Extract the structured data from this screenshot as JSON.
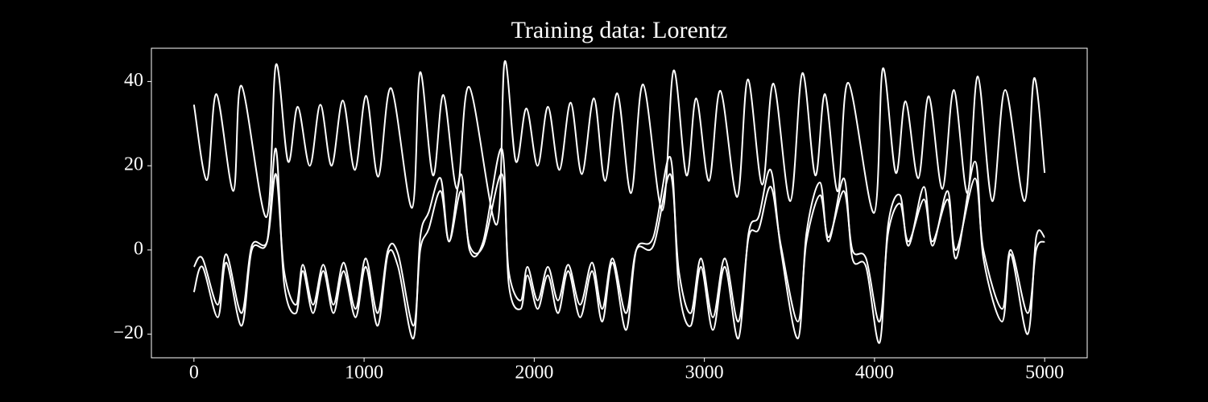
{
  "chart_data": {
    "type": "line",
    "title": "Training data: Lorentz",
    "xlim": [
      -250,
      5250
    ],
    "ylim": [
      -25.6,
      47.9
    ],
    "xticks": [
      0,
      1000,
      2000,
      3000,
      4000,
      5000
    ],
    "yticks": [
      {
        "value": -20,
        "label": "−20"
      },
      0,
      20,
      40
    ],
    "grid": false,
    "series": [
      {
        "color": "#ffffff",
        "x": [
          0,
          50,
          140,
          190,
          280,
          340,
          430,
          482,
          530,
          600,
          640,
          700,
          760,
          820,
          880,
          950,
          1010,
          1080,
          1140,
          1200,
          1290,
          1330,
          1380,
          1450,
          1500,
          1570,
          1620,
          1700,
          1810,
          1850,
          1920,
          1960,
          2020,
          2080,
          2140,
          2200,
          2270,
          2340,
          2400,
          2460,
          2540,
          2600,
          2700,
          2800,
          2850,
          2920,
          2980,
          3050,
          3120,
          3200,
          3260,
          3320,
          3390,
          3450,
          3550,
          3600,
          3680,
          3730,
          3820,
          3870,
          3950,
          4030,
          4080,
          4150,
          4200,
          4290,
          4340,
          4430,
          4480,
          4590,
          4640,
          4750,
          4800,
          4900,
          4950,
          5000
        ],
        "values": [
          -4,
          -2,
          -13,
          -1,
          -15,
          1,
          2,
          18,
          -5,
          -13,
          -3.5,
          -13,
          -3.5,
          -13,
          -3,
          -14,
          -2,
          -15,
          0,
          -1,
          -18,
          0,
          5,
          14,
          2,
          14,
          1,
          1,
          18,
          -5,
          -12,
          -4,
          -12,
          -4,
          -12,
          -3.5,
          -13,
          -3,
          -14,
          -2,
          -15,
          0,
          1,
          18,
          -5,
          -15,
          -2,
          -16,
          -2,
          -17,
          3,
          5,
          15,
          1,
          -17,
          2,
          13,
          3,
          14,
          0,
          -2,
          -17,
          4,
          11,
          2,
          12,
          2,
          12,
          0,
          17,
          0,
          -14,
          0,
          -15,
          0,
          2
        ]
      },
      {
        "color": "#ffffff",
        "x": [
          0,
          50,
          140,
          190,
          280,
          340,
          430,
          482,
          530,
          600,
          640,
          700,
          760,
          820,
          880,
          950,
          1010,
          1080,
          1140,
          1200,
          1290,
          1330,
          1380,
          1450,
          1500,
          1570,
          1620,
          1700,
          1810,
          1850,
          1920,
          1960,
          2020,
          2080,
          2140,
          2200,
          2270,
          2340,
          2400,
          2460,
          2540,
          2600,
          2700,
          2800,
          2850,
          2920,
          2980,
          3050,
          3120,
          3200,
          3260,
          3320,
          3390,
          3450,
          3550,
          3600,
          3680,
          3730,
          3820,
          3870,
          3950,
          4030,
          4080,
          4150,
          4200,
          4290,
          4340,
          4430,
          4480,
          4590,
          4640,
          4750,
          4800,
          4900,
          4950,
          5000
        ],
        "values": [
          -10,
          -4,
          -16,
          -3,
          -18,
          0,
          2,
          24,
          -8,
          -15,
          -5,
          -15,
          -5,
          -15,
          -5,
          -16,
          -4,
          -18,
          -1,
          -4,
          -21,
          3,
          9,
          17,
          2,
          18,
          0,
          2,
          24,
          -8,
          -14,
          -6,
          -14,
          -6,
          -15,
          -5,
          -16,
          -5,
          -17,
          -3,
          -19,
          0,
          3,
          22,
          -9,
          -18,
          -4,
          -19,
          -4,
          -21,
          4,
          8,
          19,
          0,
          -21,
          4,
          16,
          2,
          17,
          -2,
          -4,
          -22,
          6,
          13,
          1,
          15,
          1,
          14,
          -2,
          21,
          -2,
          -17,
          -1,
          -20,
          3,
          3
        ]
      },
      {
        "color": "#ffffff",
        "x": [
          0,
          76,
          132,
          232,
          279,
          426,
          482,
          553,
          610,
          681,
          743,
          809,
          875,
          946,
          1012,
          1083,
          1159,
          1282,
          1329,
          1405,
          1466,
          1547,
          1618,
          1779,
          1826,
          1892,
          1954,
          2020,
          2081,
          2148,
          2214,
          2280,
          2351,
          2417,
          2488,
          2569,
          2640,
          2753,
          2819,
          2895,
          2952,
          3027,
          3094,
          3193,
          3255,
          3340,
          3406,
          3505,
          3576,
          3652,
          3709,
          3784,
          3846,
          3997,
          4049,
          4125,
          4182,
          4257,
          4319,
          4399,
          4466,
          4546,
          4607,
          4692,
          4768,
          4882,
          4938,
          5000
        ],
        "values": [
          34.5,
          16.6,
          37,
          14,
          39,
          7.8,
          44,
          21,
          34,
          20,
          34.5,
          20,
          35.5,
          19,
          36.6,
          17.4,
          38.4,
          10,
          42.2,
          17.7,
          36.8,
          14.5,
          38.7,
          6,
          44.7,
          21,
          33.6,
          20,
          34,
          19,
          35,
          18,
          36,
          16.4,
          37.2,
          13.5,
          39.3,
          9.4,
          42.6,
          17.7,
          36,
          16.4,
          37.8,
          12.6,
          40.5,
          15.5,
          39.5,
          11.6,
          42,
          17.7,
          37,
          13.9,
          39.7,
          8.8,
          43.1,
          18.3,
          35.3,
          17,
          36.5,
          14.5,
          38,
          13.5,
          41.2,
          11.6,
          38,
          11.6,
          40.8,
          18.3
        ]
      }
    ]
  }
}
